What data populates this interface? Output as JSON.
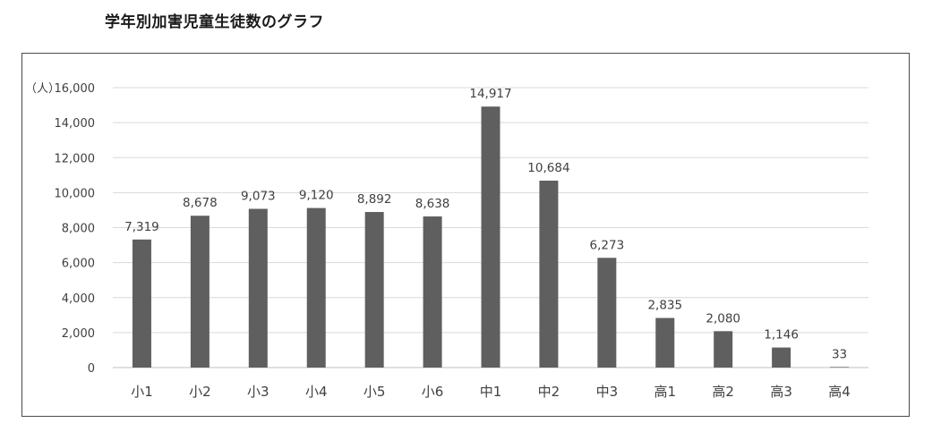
{
  "page": {
    "title": "学年別加害児童生徒数のグラフ"
  },
  "colors": {
    "bar": "#5f5f5f",
    "grid": "#d9d9d9",
    "axis": "#bfbfbf",
    "text": "#404040"
  },
  "chart_data": {
    "type": "bar",
    "title": "",
    "xlabel": "",
    "ylabel": "",
    "unit_label": "（人）",
    "categories": [
      "小1",
      "小2",
      "小3",
      "小4",
      "小5",
      "小6",
      "中1",
      "中2",
      "中3",
      "高1",
      "高2",
      "高3",
      "高4"
    ],
    "values": [
      7319,
      8678,
      9073,
      9120,
      8892,
      8638,
      14917,
      10684,
      6273,
      2835,
      2080,
      1146,
      33
    ],
    "data_labels": [
      "7,319",
      "8,678",
      "9,073",
      "9,120",
      "8,892",
      "8,638",
      "14,917",
      "10,684",
      "6,273",
      "2,835",
      "2,080",
      "1,146",
      "33"
    ],
    "ylim": [
      0,
      16000
    ],
    "y_ticks": [
      0,
      2000,
      4000,
      6000,
      8000,
      10000,
      12000,
      14000,
      16000
    ],
    "y_tick_labels": [
      "0",
      "2,000",
      "4,000",
      "6,000",
      "8,000",
      "10,000",
      "12,000",
      "14,000",
      "16,000"
    ],
    "grid": true,
    "legend": false
  }
}
